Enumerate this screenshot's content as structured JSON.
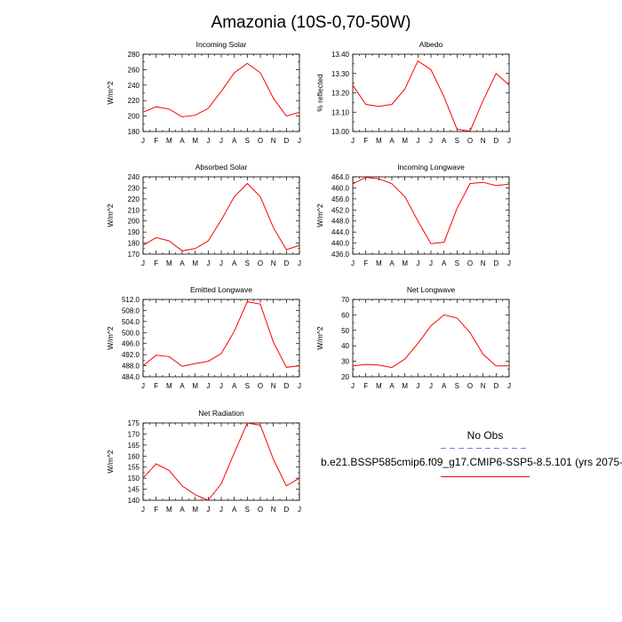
{
  "title": "Amazonia (10S-0,70-50W)",
  "line_color": "#ff0000",
  "obs_color": "#7777ff",
  "legend": {
    "obs_label": "No Obs",
    "model_label": "b.e21.BSSP585cmip6.f09_g17.CMIP6-SSP5-8.5.101 (yrs 2075-"
  },
  "chart_data": [
    {
      "type": "line",
      "title": "Incoming Solar",
      "ylabel": "W/m^2",
      "categories": [
        "J",
        "F",
        "M",
        "A",
        "M",
        "J",
        "J",
        "A",
        "S",
        "O",
        "N",
        "D",
        "J"
      ],
      "ylim": [
        180,
        280
      ],
      "yticks": [
        "180",
        "200",
        "220",
        "240",
        "260",
        "280"
      ],
      "values": [
        205,
        212,
        209,
        199,
        201,
        210,
        232,
        256,
        268,
        256,
        223,
        200,
        205
      ]
    },
    {
      "type": "line",
      "title": "Albedo",
      "ylabel": "% reflected",
      "categories": [
        "J",
        "F",
        "M",
        "A",
        "M",
        "J",
        "J",
        "A",
        "S",
        "O",
        "N",
        "D",
        "J"
      ],
      "ylim": [
        13.0,
        13.4
      ],
      "yticks": [
        "13.00",
        "13.10",
        "13.20",
        "13.30",
        "13.40"
      ],
      "values": [
        13.24,
        13.14,
        13.13,
        13.14,
        13.22,
        13.365,
        13.32,
        13.18,
        13.012,
        13.002,
        13.16,
        13.3,
        13.24
      ]
    },
    {
      "type": "line",
      "title": "Absorbed Solar",
      "ylabel": "W/m^2",
      "categories": [
        "J",
        "F",
        "M",
        "A",
        "M",
        "J",
        "J",
        "A",
        "S",
        "O",
        "N",
        "D",
        "J"
      ],
      "ylim": [
        170,
        240
      ],
      "yticks": [
        "170",
        "180",
        "190",
        "200",
        "210",
        "220",
        "230",
        "240"
      ],
      "values": [
        178,
        185,
        182,
        173,
        175,
        182,
        201,
        222,
        234,
        222,
        194,
        174,
        178
      ]
    },
    {
      "type": "line",
      "title": "Incoming Longwave",
      "ylabel": "W/m^2",
      "categories": [
        "J",
        "F",
        "M",
        "A",
        "M",
        "J",
        "J",
        "A",
        "S",
        "O",
        "N",
        "D",
        "J"
      ],
      "ylim": [
        436,
        464
      ],
      "yticks": [
        "436.0",
        "440.0",
        "444.0",
        "448.0",
        "452.0",
        "456.0",
        "460.0",
        "464.0"
      ],
      "values": [
        461.5,
        463.8,
        463.3,
        461.5,
        456.8,
        448.0,
        439.8,
        440.3,
        452.5,
        461.6,
        462.0,
        460.8,
        461.4
      ]
    },
    {
      "type": "line",
      "title": "Emitted Longwave",
      "ylabel": "W/m^2",
      "categories": [
        "J",
        "F",
        "M",
        "A",
        "M",
        "J",
        "J",
        "A",
        "S",
        "O",
        "N",
        "D",
        "J"
      ],
      "ylim": [
        484,
        512
      ],
      "yticks": [
        "484.0",
        "488.0",
        "492.0",
        "496.0",
        "500.0",
        "504.0",
        "508.0",
        "512.0"
      ],
      "values": [
        488.0,
        491.8,
        491.3,
        487.8,
        488.8,
        489.6,
        492.4,
        500.5,
        511.2,
        510.3,
        496.5,
        487.4,
        488.0
      ]
    },
    {
      "type": "line",
      "title": "Net Longwave",
      "ylabel": "W/m^2",
      "categories": [
        "J",
        "F",
        "M",
        "A",
        "M",
        "J",
        "J",
        "A",
        "S",
        "O",
        "N",
        "D",
        "J"
      ],
      "ylim": [
        20,
        70
      ],
      "yticks": [
        "20",
        "30",
        "40",
        "50",
        "60",
        "70"
      ],
      "values": [
        27,
        28,
        27.5,
        26,
        31.5,
        41.5,
        53,
        60,
        58,
        48.5,
        34.5,
        27,
        27
      ]
    },
    {
      "type": "line",
      "title": "Net Radiation",
      "ylabel": "W/m^2",
      "categories": [
        "J",
        "F",
        "M",
        "A",
        "M",
        "J",
        "J",
        "A",
        "S",
        "O",
        "N",
        "D",
        "J"
      ],
      "ylim": [
        140,
        175
      ],
      "yticks": [
        "140",
        "145",
        "150",
        "155",
        "160",
        "165",
        "170",
        "175"
      ],
      "values": [
        150,
        156.5,
        153.5,
        146.5,
        142.5,
        140,
        147.5,
        161.5,
        175,
        174,
        158.5,
        146.5,
        150
      ]
    }
  ]
}
